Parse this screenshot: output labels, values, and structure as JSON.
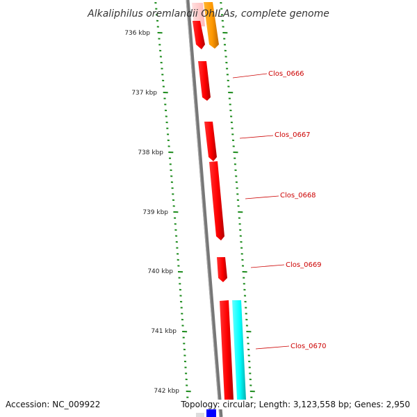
{
  "title": "Alkaliphilus oremlandii OhILAs, complete genome",
  "footer": {
    "accession": "Accession: NC_009922",
    "summary": "Topology: circular; Length: 3,123,558 bp; Genes: 2,950"
  },
  "scale_labels": [
    "736 kbp",
    "737 kbp",
    "738 kbp",
    "739 kbp",
    "740 kbp",
    "741 kbp",
    "742 kbp"
  ],
  "genes": [
    {
      "label": "",
      "strand": "forward",
      "color": "#ff9900"
    },
    {
      "label": "",
      "strand": "reverse",
      "color": "#ff0000"
    },
    {
      "label": "Clos_0666",
      "strand": "reverse",
      "color": "#ff0000"
    },
    {
      "label": "Clos_0667",
      "strand": "reverse",
      "color": "#ff0000"
    },
    {
      "label": "Clos_0668",
      "strand": "reverse",
      "color": "#ff0000"
    },
    {
      "label": "Clos_0669",
      "strand": "reverse",
      "color": "#ff0000"
    },
    {
      "label": "Clos_0670",
      "strand": "reverse",
      "color": "#ff0000"
    },
    {
      "label": "",
      "strand": "forward",
      "color": "#00ffff"
    }
  ],
  "colors": {
    "backbone": "#777777",
    "tick": "#1a8a1a",
    "label": "#cc0000",
    "pale_feature": "#ffcccc",
    "blue_feature": "#0000ff"
  }
}
